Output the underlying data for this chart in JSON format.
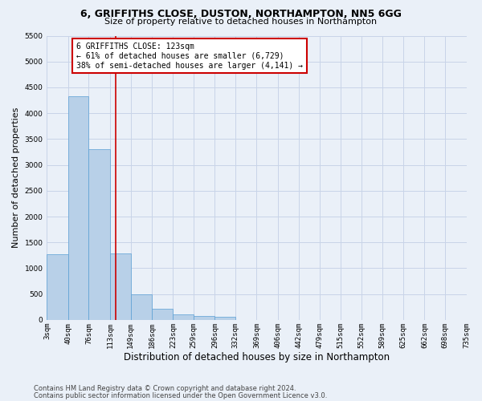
{
  "title_line1": "6, GRIFFITHS CLOSE, DUSTON, NORTHAMPTON, NN5 6GG",
  "title_line2": "Size of property relative to detached houses in Northampton",
  "xlabel": "Distribution of detached houses by size in Northampton",
  "ylabel": "Number of detached properties",
  "footer_line1": "Contains HM Land Registry data © Crown copyright and database right 2024.",
  "footer_line2": "Contains public sector information licensed under the Open Government Licence v3.0.",
  "bin_edges": [
    3,
    40,
    76,
    113,
    149,
    186,
    223,
    259,
    296,
    332,
    369,
    406,
    442,
    479,
    515,
    552,
    589,
    625,
    662,
    698,
    735
  ],
  "bin_labels": [
    "3sqm",
    "40sqm",
    "76sqm",
    "113sqm",
    "149sqm",
    "186sqm",
    "223sqm",
    "259sqm",
    "296sqm",
    "332sqm",
    "369sqm",
    "406sqm",
    "442sqm",
    "479sqm",
    "515sqm",
    "552sqm",
    "589sqm",
    "625sqm",
    "662sqm",
    "698sqm",
    "735sqm"
  ],
  "bar_heights": [
    1270,
    4330,
    3300,
    1280,
    490,
    220,
    100,
    80,
    55,
    0,
    0,
    0,
    0,
    0,
    0,
    0,
    0,
    0,
    0,
    0
  ],
  "bar_color": "#b8d0e8",
  "bar_edgecolor": "#5a9fd4",
  "background_color": "#eaf0f8",
  "property_size": 123,
  "vline_color": "#cc0000",
  "ylim": [
    0,
    5500
  ],
  "yticks": [
    0,
    500,
    1000,
    1500,
    2000,
    2500,
    3000,
    3500,
    4000,
    4500,
    5000,
    5500
  ],
  "annotation_title": "6 GRIFFITHS CLOSE: 123sqm",
  "annotation_line1": "← 61% of detached houses are smaller (6,729)",
  "annotation_line2": "38% of semi-detached houses are larger (4,141) →",
  "annotation_box_color": "#ffffff",
  "annotation_box_edgecolor": "#cc0000",
  "grid_color": "#c8d4e8",
  "title_fontsize": 9,
  "subtitle_fontsize": 8,
  "ylabel_fontsize": 8,
  "xlabel_fontsize": 8.5,
  "tick_fontsize": 6.5,
  "footer_fontsize": 6,
  "annot_fontsize": 7
}
